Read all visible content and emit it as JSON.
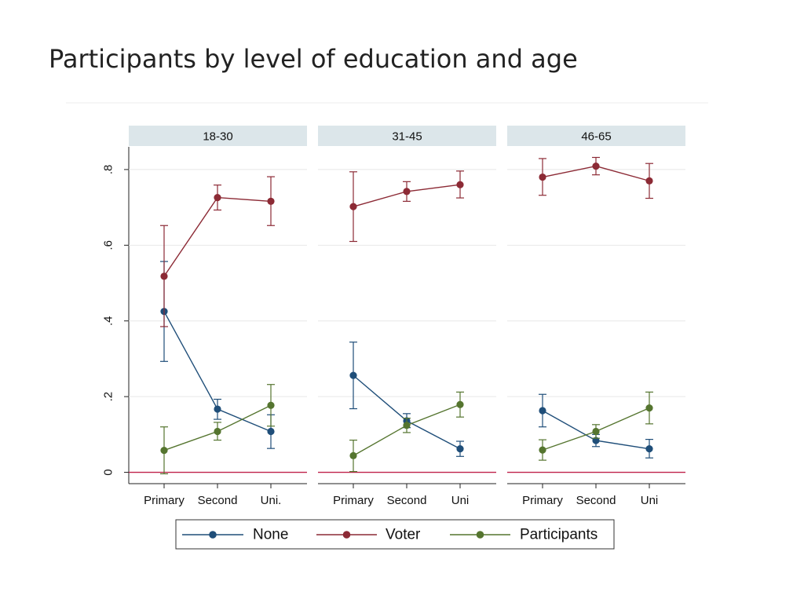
{
  "slide": {
    "title": "Participants by level of education and age"
  },
  "chart_data": {
    "type": "line",
    "title": "",
    "xlabel": "",
    "ylabel": "",
    "ylim": [
      -0.03,
      0.86
    ],
    "y_ticks": [
      {
        "value": 0,
        "label": "0"
      },
      {
        "value": 0.2,
        "label": ".2"
      },
      {
        "value": 0.4,
        "label": ".4"
      },
      {
        "value": 0.6,
        "label": ".6"
      },
      {
        "value": 0.8,
        "label": ".8"
      }
    ],
    "grid": true,
    "reference_line": {
      "value": 0,
      "color": "#c0224a"
    },
    "legend": {
      "position": "bottom"
    },
    "series_styles": [
      {
        "name": "None",
        "color": "#1f4e79"
      },
      {
        "name": "Voter",
        "color": "#8c2a35"
      },
      {
        "name": "Participants",
        "color": "#55752f"
      }
    ],
    "panels": [
      {
        "label": "18-30",
        "categories": [
          "Primary",
          "Second",
          "Uni."
        ],
        "series": [
          {
            "name": "None",
            "values": [
              0.425,
              0.167,
              0.108
            ],
            "ci_low": [
              0.293,
              0.14,
              0.063
            ],
            "ci_high": [
              0.557,
              0.193,
              0.152
            ]
          },
          {
            "name": "Voter",
            "values": [
              0.518,
              0.726,
              0.716
            ],
            "ci_low": [
              0.385,
              0.693,
              0.652
            ],
            "ci_high": [
              0.652,
              0.759,
              0.781
            ]
          },
          {
            "name": "Participants",
            "values": [
              0.058,
              0.108,
              0.177
            ],
            "ci_low": [
              -0.004,
              0.085,
              0.122
            ],
            "ci_high": [
              0.12,
              0.132,
              0.232
            ]
          }
        ]
      },
      {
        "label": "31-45",
        "categories": [
          "Primary",
          "Second",
          "Uni"
        ],
        "series": [
          {
            "name": "None",
            "values": [
              0.256,
              0.136,
              0.062
            ],
            "ci_low": [
              0.168,
              0.118,
              0.042
            ],
            "ci_high": [
              0.344,
              0.155,
              0.082
            ]
          },
          {
            "name": "Voter",
            "values": [
              0.702,
              0.742,
              0.76
            ],
            "ci_low": [
              0.61,
              0.716,
              0.725
            ],
            "ci_high": [
              0.794,
              0.768,
              0.796
            ]
          },
          {
            "name": "Participants",
            "values": [
              0.044,
              0.124,
              0.179
            ],
            "ci_low": [
              0.002,
              0.105,
              0.146
            ],
            "ci_high": [
              0.085,
              0.143,
              0.212
            ]
          }
        ]
      },
      {
        "label": "46-65",
        "categories": [
          "Primary",
          "Second",
          "Uni"
        ],
        "series": [
          {
            "name": "None",
            "values": [
              0.163,
              0.084,
              0.062
            ],
            "ci_low": [
              0.12,
              0.068,
              0.038
            ],
            "ci_high": [
              0.206,
              0.1,
              0.087
            ]
          },
          {
            "name": "Voter",
            "values": [
              0.78,
              0.809,
              0.77
            ],
            "ci_low": [
              0.732,
              0.786,
              0.724
            ],
            "ci_high": [
              0.829,
              0.832,
              0.816
            ]
          },
          {
            "name": "Participants",
            "values": [
              0.059,
              0.108,
              0.17
            ],
            "ci_low": [
              0.032,
              0.09,
              0.128
            ],
            "ci_high": [
              0.086,
              0.126,
              0.212
            ]
          }
        ]
      }
    ]
  }
}
